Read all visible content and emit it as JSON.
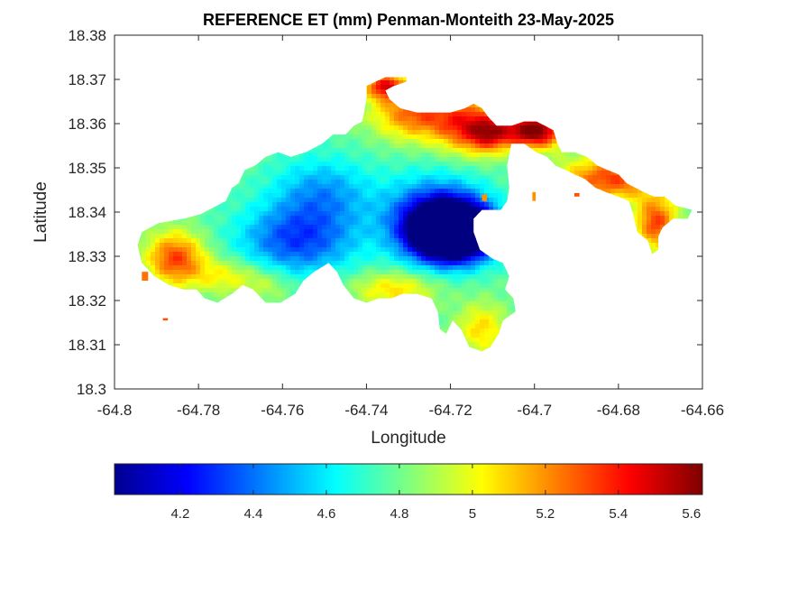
{
  "chart_data": {
    "type": "heatmap",
    "title": "REFERENCE ET (mm) Penman-Monteith 23-May-2025",
    "xlabel": "Longitude",
    "ylabel": "Latitude",
    "xlim": [
      -64.8,
      -64.66
    ],
    "ylim": [
      18.3,
      18.38
    ],
    "xticks": [
      -64.8,
      -64.78,
      -64.76,
      -64.74,
      -64.72,
      -64.7,
      -64.68,
      -64.66
    ],
    "xtick_labels": [
      "-64.8",
      "-64.78",
      "-64.76",
      "-64.74",
      "-64.72",
      "-64.7",
      "-64.68",
      "-64.66"
    ],
    "yticks": [
      18.3,
      18.31,
      18.32,
      18.33,
      18.34,
      18.35,
      18.36,
      18.37,
      18.38
    ],
    "ytick_labels": [
      "18.3",
      "18.31",
      "18.32",
      "18.33",
      "18.34",
      "18.35",
      "18.36",
      "18.37",
      "18.38"
    ],
    "colormap": "jet",
    "color_range": [
      4.02,
      5.63
    ],
    "colorbar_ticks": [
      4.2,
      4.4,
      4.6,
      4.8,
      5,
      5.2,
      5.4,
      5.6
    ],
    "colorbar_tick_labels": [
      "4.2",
      "4.4",
      "4.6",
      "4.8",
      "5",
      "5.2",
      "5.4",
      "5.6"
    ],
    "grid": false,
    "region_outline": [
      [
        -64.7935,
        18.3355
      ],
      [
        -64.7895,
        18.3375
      ],
      [
        -64.7835,
        18.3385
      ],
      [
        -64.7795,
        18.3395
      ],
      [
        -64.7735,
        18.3425
      ],
      [
        -64.772,
        18.3455
      ],
      [
        -64.7705,
        18.3465
      ],
      [
        -64.769,
        18.3495
      ],
      [
        -64.7665,
        18.3505
      ],
      [
        -64.764,
        18.3525
      ],
      [
        -64.761,
        18.3535
      ],
      [
        -64.758,
        18.3525
      ],
      [
        -64.7545,
        18.3535
      ],
      [
        -64.7505,
        18.3555
      ],
      [
        -64.748,
        18.3575
      ],
      [
        -64.745,
        18.3575
      ],
      [
        -64.743,
        18.3595
      ],
      [
        -64.741,
        18.3605
      ],
      [
        -64.74,
        18.3655
      ],
      [
        -64.74,
        18.3685
      ],
      [
        -64.7355,
        18.3705
      ],
      [
        -64.7305,
        18.3705
      ],
      [
        -64.7305,
        18.3695
      ],
      [
        -64.7335,
        18.3685
      ],
      [
        -64.7355,
        18.3675
      ],
      [
        -64.7345,
        18.3655
      ],
      [
        -64.732,
        18.3635
      ],
      [
        -64.728,
        18.3625
      ],
      [
        -64.724,
        18.3625
      ],
      [
        -64.72,
        18.3625
      ],
      [
        -64.7165,
        18.3635
      ],
      [
        -64.7145,
        18.3645
      ],
      [
        -64.7125,
        18.3635
      ],
      [
        -64.711,
        18.3615
      ],
      [
        -64.709,
        18.3595
      ],
      [
        -64.7055,
        18.3595
      ],
      [
        -64.7025,
        18.3605
      ],
      [
        -64.6995,
        18.3605
      ],
      [
        -64.6975,
        18.3595
      ],
      [
        -64.6955,
        18.3585
      ],
      [
        -64.6945,
        18.3555
      ],
      [
        -64.6935,
        18.3535
      ],
      [
        -64.6905,
        18.3535
      ],
      [
        -64.6875,
        18.3525
      ],
      [
        -64.685,
        18.3505
      ],
      [
        -64.6825,
        18.3495
      ],
      [
        -64.68,
        18.3485
      ],
      [
        -64.678,
        18.3465
      ],
      [
        -64.676,
        18.3455
      ],
      [
        -64.674,
        18.3445
      ],
      [
        -64.6715,
        18.3435
      ],
      [
        -64.669,
        18.3435
      ],
      [
        -64.6665,
        18.3415
      ],
      [
        -64.6625,
        18.3405
      ],
      [
        -64.6635,
        18.3385
      ],
      [
        -64.667,
        18.3385
      ],
      [
        -64.6695,
        18.3365
      ],
      [
        -64.6705,
        18.3345
      ],
      [
        -64.6705,
        18.3315
      ],
      [
        -64.672,
        18.3305
      ],
      [
        -64.673,
        18.3335
      ],
      [
        -64.6755,
        18.3355
      ],
      [
        -64.6765,
        18.3395
      ],
      [
        -64.6775,
        18.3425
      ],
      [
        -64.68,
        18.3435
      ],
      [
        -64.683,
        18.3445
      ],
      [
        -64.6855,
        18.3455
      ],
      [
        -64.688,
        18.3475
      ],
      [
        -64.6905,
        18.3485
      ],
      [
        -64.6925,
        18.3495
      ],
      [
        -64.695,
        18.3505
      ],
      [
        -64.697,
        18.3525
      ],
      [
        -64.6995,
        18.3535
      ],
      [
        -64.7025,
        18.3555
      ],
      [
        -64.7055,
        18.3555
      ],
      [
        -64.7065,
        18.3505
      ],
      [
        -64.706,
        18.3455
      ],
      [
        -64.7065,
        18.3425
      ],
      [
        -64.708,
        18.3405
      ],
      [
        -64.71,
        18.3405
      ],
      [
        -64.7125,
        18.3405
      ],
      [
        -64.7145,
        18.3385
      ],
      [
        -64.7145,
        18.3355
      ],
      [
        -64.713,
        18.3315
      ],
      [
        -64.71,
        18.3295
      ],
      [
        -64.7075,
        18.3285
      ],
      [
        -64.706,
        18.3255
      ],
      [
        -64.707,
        18.3225
      ],
      [
        -64.705,
        18.3205
      ],
      [
        -64.7045,
        18.3175
      ],
      [
        -64.7075,
        18.3155
      ],
      [
        -64.7085,
        18.3125
      ],
      [
        -64.7105,
        18.3095
      ],
      [
        -64.7125,
        18.3085
      ],
      [
        -64.7155,
        18.3095
      ],
      [
        -64.7175,
        18.3135
      ],
      [
        -64.7195,
        18.3155
      ],
      [
        -64.721,
        18.3125
      ],
      [
        -64.7225,
        18.3135
      ],
      [
        -64.723,
        18.3175
      ],
      [
        -64.7245,
        18.3205
      ],
      [
        -64.728,
        18.3215
      ],
      [
        -64.7315,
        18.3215
      ],
      [
        -64.734,
        18.3205
      ],
      [
        -64.737,
        18.3205
      ],
      [
        -64.74,
        18.3195
      ],
      [
        -64.743,
        18.3205
      ],
      [
        -64.7455,
        18.3235
      ],
      [
        -64.747,
        18.3265
      ],
      [
        -64.749,
        18.3285
      ],
      [
        -64.7525,
        18.3265
      ],
      [
        -64.755,
        18.3245
      ],
      [
        -64.757,
        18.3215
      ],
      [
        -64.7605,
        18.3195
      ],
      [
        -64.764,
        18.3195
      ],
      [
        -64.767,
        18.3225
      ],
      [
        -64.7695,
        18.3235
      ],
      [
        -64.772,
        18.3215
      ],
      [
        -64.7755,
        18.3195
      ],
      [
        -64.7785,
        18.3205
      ],
      [
        -64.7805,
        18.3225
      ],
      [
        -64.7835,
        18.3225
      ],
      [
        -64.787,
        18.3235
      ],
      [
        -64.7905,
        18.3255
      ],
      [
        -64.7935,
        18.3285
      ],
      [
        -64.7945,
        18.3325
      ]
    ],
    "specks": [
      [
        -64.7935,
        18.3245,
        0.0015,
        0.002,
        5.25
      ],
      [
        -64.7885,
        18.3155,
        0.0012,
        0.0005,
        5.3
      ],
      [
        -64.7005,
        18.3425,
        0.0008,
        0.002,
        5.2
      ],
      [
        -64.7125,
        18.3425,
        0.0012,
        0.0015,
        5.2
      ],
      [
        -64.6905,
        18.3435,
        0.0012,
        0.0008,
        5.3
      ]
    ],
    "field_centers": [
      [
        -64.7195,
        18.3355,
        0.009,
        0.006,
        -1.55
      ],
      [
        -64.7235,
        18.3385,
        0.012,
        0.009,
        -0.55
      ],
      [
        -64.7565,
        18.3335,
        0.014,
        0.008,
        -0.45
      ],
      [
        -64.7505,
        18.3445,
        0.012,
        0.008,
        -0.3
      ],
      [
        -64.7855,
        18.3295,
        0.007,
        0.006,
        0.55
      ],
      [
        -64.7735,
        18.3255,
        0.008,
        0.004,
        0.25
      ],
      [
        -64.7285,
        18.3625,
        0.01,
        0.006,
        0.5
      ],
      [
        -64.7155,
        18.3595,
        0.008,
        0.006,
        0.55
      ],
      [
        -64.7105,
        18.3575,
        0.005,
        0.004,
        0.4
      ],
      [
        -64.7355,
        18.3685,
        0.005,
        0.003,
        0.6
      ],
      [
        -64.7,
        18.3585,
        0.007,
        0.004,
        0.9
      ],
      [
        -64.682,
        18.3475,
        0.012,
        0.005,
        0.55
      ],
      [
        -64.671,
        18.3375,
        0.005,
        0.006,
        0.55
      ],
      [
        -64.7335,
        18.3225,
        0.01,
        0.004,
        0.3
      ],
      [
        -64.7125,
        18.3135,
        0.006,
        0.006,
        0.3
      ],
      [
        -64.7635,
        18.3235,
        0.006,
        0.004,
        0.15
      ]
    ],
    "field_base": 4.78
  }
}
